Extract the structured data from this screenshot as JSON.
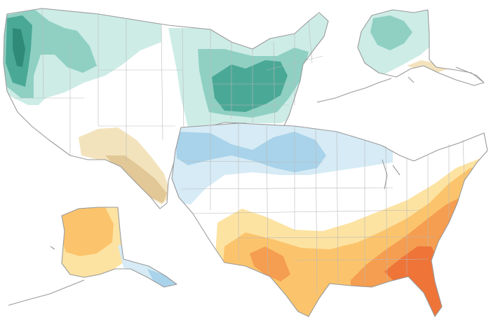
{
  "maps": [
    {
      "id": "precipitation-outlook",
      "palette": {
        "wet_light": "#cdece6",
        "wet_mid": "#8fd0c3",
        "wet_dark": "#4aa896",
        "wet_darkest": "#2f8a78",
        "dry_light": "#f3e3bd",
        "dry_mid": "#e1c896"
      }
    },
    {
      "id": "temperature-outlook",
      "palette": {
        "cold_light": "#d6ebf5",
        "cold_mid": "#a9d3ea",
        "warm_light": "#fde3a2",
        "warm_mid": "#fbc46c",
        "warm_dark": "#f59d50",
        "warm_darkest": "#ee7438"
      }
    }
  ]
}
